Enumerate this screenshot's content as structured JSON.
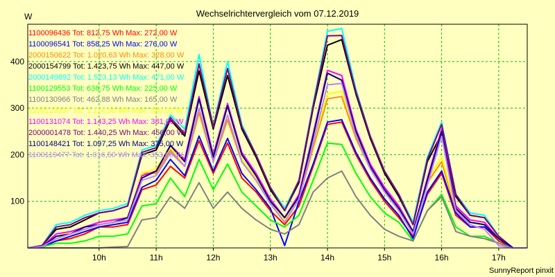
{
  "chart_data": {
    "type": "line",
    "title": "Wechselrichtervergleich vom 07.12.2019",
    "ylabel": "W",
    "xlabel": "",
    "ylim": [
      0,
      480
    ],
    "xlim": [
      8.75,
      17.5
    ],
    "y_ticks": [
      100,
      200,
      300,
      400
    ],
    "x_ticks": [
      10,
      11,
      12,
      13,
      14,
      15,
      16,
      17
    ],
    "x_tick_labels": [
      "10h",
      "11h",
      "12h",
      "13h",
      "14h",
      "15h",
      "16h",
      "17h"
    ],
    "grid": true,
    "legend_position": "top-left",
    "x": [
      8.75,
      9.0,
      9.25,
      9.5,
      9.75,
      10.0,
      10.25,
      10.5,
      10.75,
      11.0,
      11.25,
      11.5,
      11.75,
      12.0,
      12.25,
      12.5,
      12.75,
      13.0,
      13.25,
      13.5,
      13.75,
      14.0,
      14.25,
      14.5,
      14.75,
      15.0,
      15.25,
      15.5,
      15.75,
      16.0,
      16.25,
      16.5,
      16.75,
      17.0,
      17.25,
      17.5
    ],
    "series": [
      {
        "name": "1100096436",
        "legend": "1100096436 Tot: 812,75 Wh Max: 272,00 W",
        "color": "#ff0000",
        "values": [
          0,
          2,
          15,
          20,
          30,
          45,
          45,
          50,
          125,
          135,
          175,
          150,
          230,
          160,
          225,
          150,
          120,
          80,
          50,
          90,
          175,
          265,
          270,
          200,
          145,
          100,
          65,
          25,
          115,
          160,
          70,
          45,
          45,
          15,
          0,
          0
        ]
      },
      {
        "name": "1100096541",
        "legend": "1100096541 Tot: 858,25 Wh Max: 276,00 W",
        "color": "#0000ff",
        "values": [
          0,
          2,
          15,
          25,
          35,
          45,
          50,
          55,
          130,
          145,
          190,
          155,
          240,
          165,
          235,
          160,
          125,
          85,
          5,
          100,
          180,
          270,
          275,
          205,
          150,
          105,
          70,
          20,
          120,
          165,
          75,
          45,
          45,
          20,
          0,
          0
        ]
      },
      {
        "name": "2000150622",
        "legend": "2000150622 Tot: 1.020,63 Wh Max: 328,00 W",
        "color": "#ff8c00",
        "values": [
          0,
          3,
          25,
          30,
          40,
          50,
          55,
          60,
          160,
          160,
          210,
          175,
          290,
          185,
          275,
          185,
          145,
          95,
          55,
          105,
          215,
          320,
          325,
          235,
          170,
          120,
          80,
          30,
          140,
          185,
          80,
          55,
          50,
          20,
          0,
          0
        ]
      },
      {
        "name": "2000154799",
        "legend": "2000154799 Tot: 1.423,75 Wh Max: 447,00 W",
        "color": "#000000",
        "values": [
          0,
          5,
          40,
          45,
          60,
          75,
          80,
          90,
          200,
          210,
          275,
          240,
          380,
          255,
          370,
          255,
          195,
          125,
          80,
          140,
          300,
          435,
          447,
          330,
          235,
          160,
          110,
          50,
          185,
          245,
          110,
          70,
          65,
          25,
          0,
          0
        ]
      },
      {
        "name": "2000149892",
        "legend": "2000149892 Tot: 1.523,13 Wh Max: 471,00 W",
        "color": "#00ffff",
        "values": [
          0,
          5,
          50,
          55,
          70,
          80,
          85,
          95,
          210,
          220,
          285,
          255,
          415,
          260,
          400,
          265,
          200,
          130,
          85,
          145,
          310,
          465,
          471,
          340,
          240,
          165,
          115,
          55,
          195,
          270,
          115,
          75,
          70,
          25,
          0,
          0
        ]
      },
      {
        "name": "1100129553",
        "legend": "1100129553 Tot: 636,75 Wh Max: 225,00 W",
        "color": "#00ff00",
        "values": [
          0,
          2,
          10,
          10,
          15,
          25,
          25,
          30,
          90,
          95,
          150,
          110,
          190,
          125,
          180,
          120,
          90,
          60,
          45,
          70,
          145,
          225,
          222,
          160,
          110,
          75,
          55,
          15,
          80,
          115,
          45,
          25,
          25,
          10,
          0,
          0
        ]
      },
      {
        "name": "1100130966",
        "legend": "1100130966 Tot: 462,88 Wh Max: 165,00 W",
        "color": "#808080",
        "values": [
          0,
          0,
          0,
          0,
          0,
          0,
          2,
          3,
          60,
          65,
          110,
          85,
          140,
          85,
          120,
          85,
          60,
          40,
          30,
          50,
          120,
          150,
          165,
          110,
          70,
          40,
          25,
          15,
          80,
          110,
          35,
          25,
          20,
          10,
          0,
          0
        ]
      },
      {
        "name": "1100129337",
        "legend": "1100129337 Tot: 1.114,50 Wh Max: 336,00 W",
        "color": "#ffff00",
        "values": [
          0,
          3,
          25,
          35,
          45,
          55,
          60,
          65,
          160,
          170,
          215,
          185,
          300,
          195,
          285,
          190,
          150,
          100,
          60,
          110,
          225,
          330,
          336,
          245,
          175,
          125,
          85,
          35,
          145,
          195,
          85,
          55,
          50,
          20,
          0,
          0
        ]
      },
      {
        "name": "1100131074",
        "legend": "1100131074 Tot: 1.143,25 Wh Max: 381,00 W",
        "color": "#ff00ff",
        "values": [
          0,
          3,
          30,
          35,
          45,
          55,
          60,
          65,
          155,
          165,
          220,
          190,
          325,
          200,
          310,
          205,
          160,
          105,
          65,
          115,
          245,
          381,
          370,
          255,
          180,
          130,
          90,
          35,
          150,
          255,
          90,
          60,
          55,
          20,
          0,
          0
        ]
      },
      {
        "name": "2000001478",
        "legend": "2000001478 Tot: 1.440,25 Wh Max: 456,00 W",
        "color": "#800080",
        "values": [
          0,
          5,
          45,
          50,
          65,
          75,
          80,
          90,
          205,
          215,
          280,
          245,
          395,
          260,
          385,
          260,
          200,
          130,
          80,
          145,
          305,
          455,
          456,
          335,
          240,
          165,
          115,
          50,
          190,
          265,
          115,
          70,
          65,
          25,
          0,
          0
        ]
      },
      {
        "name": "1100148421",
        "legend": "1100148421 Tot: 1.097,25 Wh Max: 375,00 W",
        "color": "#000080",
        "values": [
          0,
          3,
          25,
          30,
          45,
          50,
          55,
          65,
          150,
          165,
          220,
          185,
          320,
          195,
          305,
          200,
          155,
          100,
          65,
          110,
          240,
          375,
          360,
          250,
          175,
          125,
          85,
          35,
          145,
          250,
          85,
          55,
          50,
          20,
          0,
          0
        ]
      },
      {
        "name": "1100119477",
        "legend": "1100119477 Tot: 1.016,50 Wh Max: 353,00 W",
        "color": "#c080ff",
        "values": [
          0,
          3,
          20,
          30,
          40,
          50,
          55,
          60,
          145,
          155,
          205,
          175,
          300,
          185,
          285,
          185,
          145,
          95,
          55,
          105,
          225,
          350,
          353,
          240,
          170,
          120,
          80,
          30,
          135,
          240,
          80,
          50,
          40,
          5,
          0,
          0
        ]
      }
    ]
  },
  "footer": {
    "credit": "SunnyReport pinxit"
  }
}
